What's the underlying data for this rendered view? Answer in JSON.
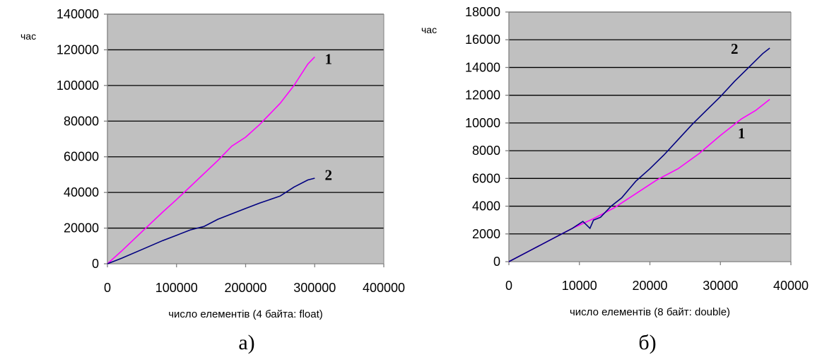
{
  "chart_data": [
    {
      "type": "line",
      "xlabel": "число елементів (4 байта: float)",
      "ylabel": "час",
      "caption": "а)",
      "xlim": [
        0,
        400000
      ],
      "ylim": [
        0,
        140000
      ],
      "xticks": [
        0,
        100000,
        200000,
        300000,
        400000
      ],
      "yticks": [
        0,
        20000,
        40000,
        60000,
        80000,
        100000,
        120000,
        140000
      ],
      "grid": "horizontal",
      "plot_background": "#c0c0c0",
      "series": [
        {
          "name": "1",
          "color": "#ff00ff",
          "x": [
            0,
            20000,
            50000,
            80000,
            100000,
            130000,
            160000,
            180000,
            200000,
            220000,
            250000,
            270000,
            290000,
            300000
          ],
          "y": [
            0,
            7000,
            18000,
            29000,
            36000,
            47000,
            58000,
            66000,
            71000,
            78000,
            90000,
            100000,
            112000,
            116000
          ]
        },
        {
          "name": "2",
          "color": "#000080",
          "x": [
            0,
            20000,
            50000,
            80000,
            100000,
            120000,
            140000,
            160000,
            180000,
            200000,
            220000,
            250000,
            270000,
            290000,
            300000
          ],
          "y": [
            0,
            3000,
            8000,
            13000,
            16000,
            19000,
            21000,
            25000,
            28000,
            31000,
            34000,
            38000,
            43000,
            47000,
            48000
          ]
        }
      ],
      "labels": [
        {
          "text": "1",
          "x": 320000,
          "y": 112000
        },
        {
          "text": "2",
          "x": 320000,
          "y": 47000
        }
      ]
    },
    {
      "type": "line",
      "xlabel": "число елементів (8 байт: double)",
      "ylabel": "час",
      "caption": "б)",
      "xlim": [
        0,
        40000
      ],
      "ylim": [
        0,
        18000
      ],
      "xticks": [
        0,
        10000,
        20000,
        30000,
        40000
      ],
      "yticks": [
        0,
        2000,
        4000,
        6000,
        8000,
        10000,
        12000,
        14000,
        16000,
        18000
      ],
      "grid": "horizontal",
      "plot_background": "#c0c0c0",
      "series": [
        {
          "name": "1",
          "color": "#ff00ff",
          "x": [
            0,
            3000,
            6000,
            9000,
            12000,
            15000,
            18000,
            21000,
            24000,
            27000,
            30000,
            33000,
            35000,
            37000
          ],
          "y": [
            0,
            800,
            1600,
            2400,
            3100,
            3900,
            4900,
            5900,
            6700,
            7800,
            9100,
            10300,
            10900,
            11700
          ]
        },
        {
          "name": "2",
          "color": "#000080",
          "x": [
            0,
            3000,
            6000,
            9000,
            10500,
            11500,
            12000,
            13000,
            14500,
            16000,
            18000,
            20000,
            22000,
            24000,
            26000,
            28000,
            30000,
            32000,
            34000,
            36000,
            37000
          ],
          "y": [
            0,
            800,
            1600,
            2400,
            2900,
            2400,
            3000,
            3200,
            4000,
            4600,
            5800,
            6700,
            7700,
            8800,
            9900,
            10900,
            11900,
            13000,
            14000,
            15000,
            15400
          ]
        }
      ],
      "labels": [
        {
          "text": "2",
          "x": 32000,
          "y": 15000
        },
        {
          "text": "1",
          "x": 33000,
          "y": 8900
        }
      ]
    }
  ]
}
